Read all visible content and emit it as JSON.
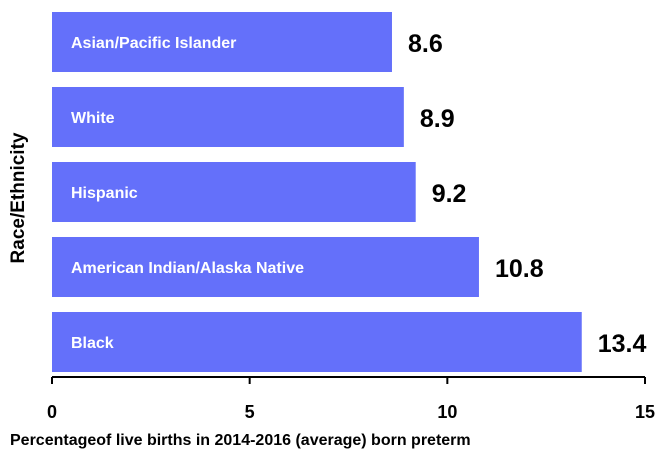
{
  "chart_data": {
    "type": "bar",
    "orientation": "horizontal",
    "categories": [
      "Asian/Pacific Islander",
      "White",
      "Hispanic",
      "American Indian/Alaska Native",
      "Black"
    ],
    "values": [
      8.6,
      8.9,
      9.2,
      10.8,
      13.4
    ],
    "value_labels": [
      "8.6",
      "8.9",
      "9.2",
      "10.8",
      "13.4"
    ],
    "xlabel": "Percentageof live births in 2014-2016 (average) born preterm",
    "ylabel": "Race/Ethnicity",
    "xlim": [
      0,
      15
    ],
    "xticks": [
      0,
      5,
      10,
      15
    ],
    "xtick_labels": [
      "0",
      "5",
      "10",
      "15"
    ],
    "grid": false,
    "bar_color": "#6470FA"
  }
}
